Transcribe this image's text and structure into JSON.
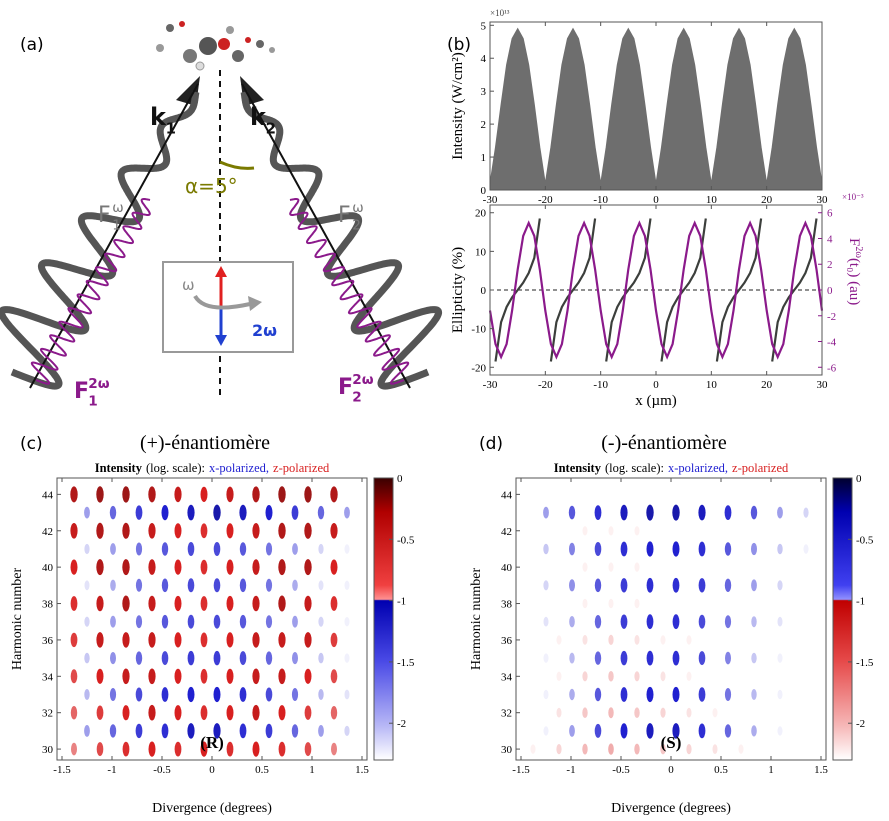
{
  "panel_a": {
    "label": "(a)",
    "k1": {
      "symbol": "k",
      "subscript": "1"
    },
    "k2": {
      "symbol": "k",
      "subscript": "2"
    },
    "angle": "α=5°",
    "F1_omega": {
      "symbol": "F",
      "superscript": "ω",
      "subscript": "1"
    },
    "F2_omega": {
      "symbol": "F",
      "superscript": "ω",
      "subscript": "2"
    },
    "inset": {
      "omega": "ω",
      "two_omega": "2ω"
    },
    "F1_two_omega": {
      "symbol": "F",
      "superscript": "2ω",
      "subscript": "1"
    },
    "F2_two_omega": {
      "symbol": "F",
      "superscript": "2ω",
      "subscript": "2"
    }
  },
  "panel_b": {
    "label": "(b)",
    "intensity_chart": {
      "type": "area",
      "ylabel": "Intensity (W/cm²)",
      "y_exponent": "×10¹³",
      "color": "#6e6e6e",
      "x": [
        -30,
        -29,
        -28,
        -27,
        -26,
        -25,
        -24,
        -23,
        -22,
        -21,
        -20,
        -19,
        -18,
        -17,
        -16,
        -15,
        -14,
        -13,
        -12,
        -11,
        -10,
        -9,
        -8,
        -7,
        -6,
        -5,
        -4,
        -3,
        -2,
        -1,
        0,
        1,
        2,
        3,
        4,
        5,
        6,
        7,
        8,
        9,
        10,
        11,
        12,
        13,
        14,
        15,
        16,
        17,
        18,
        19,
        20,
        21,
        22,
        23,
        24,
        25,
        26,
        27,
        28,
        29,
        30
      ],
      "values": [
        0.2,
        1.3,
        2.6,
        3.8,
        4.6,
        4.9,
        4.6,
        3.8,
        2.6,
        1.3,
        0.2,
        1.3,
        2.6,
        3.8,
        4.6,
        4.9,
        4.6,
        3.8,
        2.6,
        1.3,
        0.2,
        1.3,
        2.6,
        3.8,
        4.6,
        4.9,
        4.6,
        3.8,
        2.6,
        1.3,
        0.2,
        1.3,
        2.6,
        3.8,
        4.6,
        4.9,
        4.6,
        3.8,
        2.6,
        1.3,
        0.2,
        1.3,
        2.6,
        3.8,
        4.6,
        4.9,
        4.6,
        3.8,
        2.6,
        1.3,
        0.2,
        1.3,
        2.6,
        3.8,
        4.6,
        4.9,
        4.6,
        3.8,
        2.6,
        1.3,
        0.2
      ],
      "xlim": [
        -30,
        30
      ],
      "xticks": [
        -30,
        -20,
        -10,
        0,
        10,
        20,
        30
      ],
      "ylim": [
        0,
        5.1
      ],
      "yticks": [
        0,
        1,
        2,
        3,
        4,
        5
      ]
    },
    "ellipticity_chart": {
      "type": "line",
      "xlabel": "x (µm)",
      "ylabel": "Ellipticity (%)",
      "y2label": {
        "symbol": "F",
        "superscript": "2ω",
        "rest": "(t₀) (au)"
      },
      "y2_exponent": "×10⁻³",
      "zero_line": true,
      "x": [
        -30,
        -29,
        -28,
        -27,
        -26,
        -25,
        -24,
        -23,
        -22,
        -21,
        -20,
        -19,
        -18,
        -17,
        -16,
        -15,
        -14,
        -13,
        -12,
        -11,
        -10,
        -9,
        -8,
        -7,
        -6,
        -5,
        -4,
        -3,
        -2,
        -1,
        0,
        1,
        2,
        3,
        4,
        5,
        6,
        7,
        8,
        9,
        10,
        11,
        12,
        13,
        14,
        15,
        16,
        17,
        18,
        19,
        20,
        21,
        22,
        23,
        24,
        25,
        26,
        27,
        28,
        29,
        30
      ],
      "series": [
        {
          "color": "#3c3f3c",
          "values": [
            null,
            -18.5,
            -8.3,
            -4.4,
            -1.9,
            0,
            1.9,
            4.4,
            8.3,
            18.5,
            null,
            -18.5,
            -8.3,
            -4.4,
            -1.9,
            0,
            1.9,
            4.4,
            8.3,
            18.5,
            null,
            -18.5,
            -8.3,
            -4.4,
            -1.9,
            0,
            1.9,
            4.4,
            8.3,
            18.5,
            null,
            -18.5,
            -8.3,
            -4.4,
            -1.9,
            0,
            1.9,
            4.4,
            8.3,
            18.5,
            null,
            -18.5,
            -8.3,
            -4.4,
            -1.9,
            0,
            1.9,
            4.4,
            8.3,
            18.5,
            null,
            -18.5,
            -8.3,
            -4.4,
            -1.9,
            0,
            1.9,
            4.4,
            8.3,
            18.5,
            null
          ]
        },
        {
          "color": "#8b1a8b",
          "axis": "y2",
          "values": [
            -1.6,
            -4.2,
            -5.2,
            -4.2,
            -1.6,
            1.6,
            4.2,
            5.2,
            4.2,
            1.6,
            -1.6,
            -4.2,
            -5.2,
            -4.2,
            -1.6,
            1.6,
            4.2,
            5.2,
            4.2,
            1.6,
            -1.6,
            -4.2,
            -5.2,
            -4.2,
            -1.6,
            1.6,
            4.2,
            5.2,
            4.2,
            1.6,
            -1.6,
            -4.2,
            -5.2,
            -4.2,
            -1.6,
            1.6,
            4.2,
            5.2,
            4.2,
            1.6,
            -1.6,
            -4.2,
            -5.2,
            -4.2,
            -1.6,
            1.6,
            4.2,
            5.2,
            4.2,
            1.6,
            -1.6,
            -4.2,
            -5.2,
            -4.2,
            -1.6,
            1.6,
            4.2,
            5.2,
            4.2,
            1.6,
            -1.6
          ]
        }
      ],
      "xlim": [
        -30,
        30
      ],
      "xticks": [
        -30,
        -20,
        -10,
        0,
        10,
        20,
        30
      ],
      "ylim": [
        -22,
        22
      ],
      "yticks": [
        -20,
        -10,
        0,
        10,
        20
      ],
      "y2lim": [
        -6.6,
        6.6
      ],
      "y2ticks": [
        -6,
        -4,
        -2,
        0,
        2,
        4,
        6
      ]
    }
  },
  "panel_c": {
    "label": "(c)",
    "heading": "(+)-énantiomère",
    "chart_data": {
      "type": "ellipse-map",
      "title": {
        "bold": "Intensity",
        "plain": "(log. scale):",
        "x": "x-polarized,",
        "z": "z-polarized"
      },
      "x_color": "#1f1fd0",
      "z_color": "#d81f1f",
      "xlabel": "Divergence (degrees)",
      "ylabel": "Harmonic number",
      "annotation": "(R)",
      "xlim": [
        -1.55,
        1.55
      ],
      "xticks": [
        -1.5,
        -1,
        -0.5,
        0,
        0.5,
        1,
        1.5
      ],
      "ylim": [
        29.4,
        44.9
      ],
      "yticks": [
        30,
        32,
        34,
        36,
        38,
        40,
        42,
        44
      ],
      "clim": [
        -2.3,
        0
      ],
      "cticks": [
        0,
        -0.5,
        -1,
        -1.5,
        -2
      ],
      "harmonics": [
        30,
        31,
        32,
        33,
        34,
        35,
        36,
        37,
        38,
        39,
        40,
        41,
        42,
        43,
        44
      ],
      "polarization": [
        "z",
        "x",
        "z",
        "x",
        "z",
        "x",
        "z",
        "x",
        "z",
        "x",
        "z",
        "x",
        "z",
        "x",
        "z"
      ],
      "divergence_even": [
        -1.38,
        -1.12,
        -0.86,
        -0.6,
        -0.34,
        -0.08,
        0.18,
        0.44,
        0.7,
        0.96,
        1.22
      ],
      "divergence_odd": [
        -1.25,
        -0.99,
        -0.73,
        -0.47,
        -0.21,
        0.05,
        0.31,
        0.57,
        0.83,
        1.09,
        1.35
      ],
      "log_intensity": [
        [
          -1.4,
          -1.0,
          -0.8,
          -0.7,
          -0.8,
          -0.7,
          -0.8,
          -0.7,
          -0.8,
          -1.0,
          -1.4
        ],
        [
          -1.6,
          -1.2,
          -0.9,
          -0.8,
          -0.6,
          -0.6,
          -0.8,
          -0.9,
          -1.2,
          -1.6,
          -2.0
        ],
        [
          -1.2,
          -0.9,
          -0.7,
          -0.6,
          -0.7,
          -0.8,
          -0.7,
          -0.6,
          -0.7,
          -0.9,
          -1.2
        ],
        [
          -1.8,
          -1.3,
          -1.0,
          -0.8,
          -0.7,
          -0.7,
          -0.8,
          -1.0,
          -1.3,
          -1.8,
          -2.1
        ],
        [
          -1.0,
          -0.7,
          -0.6,
          -0.6,
          -0.7,
          -0.8,
          -0.7,
          -0.6,
          -0.6,
          -0.7,
          -1.0
        ],
        [
          -1.9,
          -1.5,
          -1.2,
          -1.0,
          -0.9,
          -0.9,
          -1.0,
          -1.2,
          -1.5,
          -1.9,
          -2.2
        ],
        [
          -0.9,
          -0.6,
          -0.6,
          -0.6,
          -0.7,
          -0.8,
          -0.7,
          -0.6,
          -0.6,
          -0.6,
          -0.9
        ],
        [
          -2.0,
          -1.6,
          -1.3,
          -1.1,
          -1.0,
          -1.0,
          -1.1,
          -1.3,
          -1.6,
          -2.0,
          -2.2
        ],
        [
          -0.8,
          -0.6,
          -0.5,
          -0.6,
          -0.7,
          -0.8,
          -0.7,
          -0.6,
          -0.5,
          -0.6,
          -0.8
        ],
        [
          -2.1,
          -1.7,
          -1.3,
          -1.1,
          -1.0,
          -1.0,
          -1.1,
          -1.3,
          -1.7,
          -2.1,
          -2.2
        ],
        [
          -0.7,
          -0.5,
          -0.5,
          -0.6,
          -0.7,
          -0.8,
          -0.7,
          -0.6,
          -0.5,
          -0.5,
          -0.7
        ],
        [
          -2.0,
          -1.6,
          -1.3,
          -1.1,
          -1.0,
          -1.0,
          -1.1,
          -1.3,
          -1.6,
          -2.0,
          -2.2
        ],
        [
          -0.6,
          -0.5,
          -0.5,
          -0.6,
          -0.7,
          -0.8,
          -0.7,
          -0.6,
          -0.5,
          -0.5,
          -0.6
        ],
        [
          -1.6,
          -1.2,
          -0.9,
          -0.7,
          -0.6,
          -0.5,
          -0.6,
          -0.7,
          -0.9,
          -1.2,
          -1.6
        ],
        [
          -0.5,
          -0.4,
          -0.4,
          -0.5,
          -0.6,
          -0.7,
          -0.6,
          -0.5,
          -0.4,
          -0.4,
          -0.5
        ]
      ]
    }
  },
  "panel_d": {
    "label": "(d)",
    "heading": "(-)-énantiomère",
    "chart_data": {
      "type": "ellipse-map",
      "title": {
        "bold": "Intensity",
        "plain": "(log. scale):",
        "x": "x-polarized,",
        "z": "z-polarized"
      },
      "x_color": "#1f1fd0",
      "z_color": "#d81f1f",
      "xlabel": "Divergence (degrees)",
      "ylabel": "Harmonic number",
      "annotation": "(S)",
      "xlim": [
        -1.55,
        1.55
      ],
      "xticks": [
        -1.5,
        -1,
        -0.5,
        0,
        0.5,
        1,
        1.5
      ],
      "ylim": [
        29.4,
        44.9
      ],
      "yticks": [
        30,
        32,
        34,
        36,
        38,
        40,
        42,
        44
      ],
      "clim": [
        -2.3,
        0
      ],
      "cticks": [
        0,
        -0.5,
        -1,
        -1.5,
        -2
      ],
      "harmonics": [
        30,
        31,
        32,
        33,
        34,
        35,
        36,
        37,
        38,
        39,
        40,
        41,
        42,
        43,
        44
      ],
      "polarization": [
        "z",
        "x",
        "z",
        "x",
        "z",
        "x",
        "z",
        "x",
        "z",
        "x",
        "z",
        "x",
        "z",
        "x",
        "z"
      ],
      "divergence_even": [
        -1.38,
        -1.12,
        -0.86,
        -0.6,
        -0.34,
        -0.08,
        0.18,
        0.44,
        0.7,
        0.96,
        1.22
      ],
      "divergence_odd": [
        -1.25,
        -0.99,
        -0.73,
        -0.47,
        -0.21,
        0.05,
        0.31,
        0.57,
        0.83,
        1.09,
        1.35
      ],
      "log_intensity": [
        [
          -2.2,
          -2.0,
          -1.8,
          -1.7,
          -1.8,
          -1.9,
          -2.0,
          -2.1,
          -2.2,
          -2.3,
          -2.3
        ],
        [
          -2.2,
          -1.6,
          -1.0,
          -0.7,
          -0.6,
          -0.6,
          -0.8,
          -1.2,
          -1.7,
          -2.2,
          -2.3
        ],
        [
          -2.3,
          -2.1,
          -1.9,
          -1.8,
          -1.9,
          -2.0,
          -2.1,
          -2.2,
          -2.3,
          -2.3,
          -2.3
        ],
        [
          -2.2,
          -1.7,
          -1.1,
          -0.8,
          -0.7,
          -0.7,
          -0.9,
          -1.3,
          -1.8,
          -2.2,
          -2.3
        ],
        [
          -2.3,
          -2.2,
          -2.0,
          -1.9,
          -2.0,
          -2.1,
          -2.2,
          -2.3,
          -2.3,
          -2.3,
          -2.3
        ],
        [
          -2.2,
          -1.8,
          -1.2,
          -0.9,
          -0.8,
          -0.8,
          -1.0,
          -1.4,
          -1.9,
          -2.2,
          -2.3
        ],
        [
          -2.3,
          -2.2,
          -2.1,
          -2.0,
          -2.1,
          -2.2,
          -2.2,
          -2.3,
          -2.3,
          -2.3,
          -2.3
        ],
        [
          -2.1,
          -1.7,
          -1.2,
          -0.9,
          -0.8,
          -0.8,
          -1.0,
          -1.3,
          -1.8,
          -2.1,
          -2.3
        ],
        [
          -2.3,
          -2.3,
          -2.2,
          -2.2,
          -2.2,
          -2.3,
          -2.3,
          -2.3,
          -2.3,
          -2.3,
          -2.3
        ],
        [
          -2.0,
          -1.5,
          -1.1,
          -0.9,
          -0.8,
          -0.8,
          -0.9,
          -1.2,
          -1.6,
          -2.0,
          -2.3
        ],
        [
          -2.3,
          -2.3,
          -2.2,
          -2.2,
          -2.2,
          -2.3,
          -2.3,
          -2.3,
          -2.3,
          -2.3,
          -2.3
        ],
        [
          -1.9,
          -1.4,
          -1.0,
          -0.8,
          -0.7,
          -0.7,
          -0.8,
          -1.1,
          -1.5,
          -1.9,
          -2.2
        ],
        [
          -2.3,
          -2.3,
          -2.2,
          -2.2,
          -2.2,
          -2.3,
          -2.3,
          -2.3,
          -2.3,
          -2.3,
          -2.3
        ],
        [
          -1.6,
          -1.1,
          -0.8,
          -0.6,
          -0.5,
          -0.5,
          -0.6,
          -0.8,
          -1.1,
          -1.6,
          -2.0
        ],
        [
          -2.3,
          -2.3,
          -2.3,
          -2.3,
          -2.3,
          -2.3,
          -2.3,
          -2.3,
          -2.3,
          -2.3,
          -2.3
        ]
      ]
    }
  }
}
